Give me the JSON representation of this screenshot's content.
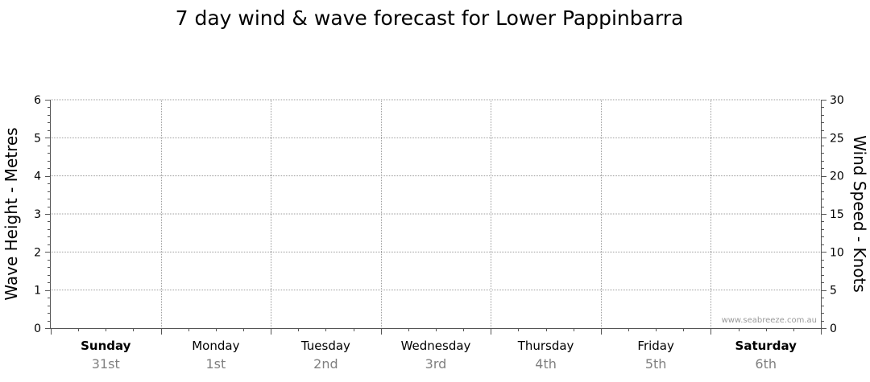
{
  "chart_data": {
    "type": "line",
    "title": "7 day wind & wave forecast for Lower Pappinbarra",
    "ylabel_left": "Wave Height - Metres",
    "ylabel_right": "Wind Speed - Knots",
    "ylim_left": [
      0,
      6
    ],
    "ylim_right": [
      0,
      30
    ],
    "yticks_left": [
      "0",
      "1",
      "2",
      "3",
      "4",
      "5",
      "6"
    ],
    "yticks_right": [
      "0",
      "5",
      "10",
      "15",
      "20",
      "25",
      "30"
    ],
    "days": [
      {
        "name": "Sunday",
        "date": "31st",
        "bold": true
      },
      {
        "name": "Monday",
        "date": "1st",
        "bold": false
      },
      {
        "name": "Tuesday",
        "date": "2nd",
        "bold": false
      },
      {
        "name": "Wednesday",
        "date": "3rd",
        "bold": false
      },
      {
        "name": "Thursday",
        "date": "4th",
        "bold": false
      },
      {
        "name": "Friday",
        "date": "5th",
        "bold": false
      },
      {
        "name": "Saturday",
        "date": "6th",
        "bold": true
      }
    ],
    "series": [],
    "grid": true,
    "watermark": "www.seabreeze.com.au"
  }
}
